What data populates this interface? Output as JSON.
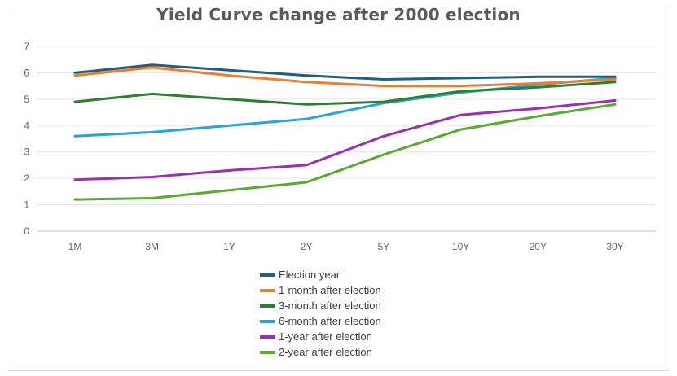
{
  "chart_data": {
    "type": "line",
    "title": "Yield Curve change after 2000 election",
    "xlabel": "",
    "ylabel": "",
    "categories": [
      "1M",
      "3M",
      "1Y",
      "2Y",
      "5Y",
      "10Y",
      "20Y",
      "30Y"
    ],
    "ylim": [
      0,
      7
    ],
    "yticks": [
      "0",
      "1",
      "2",
      "3",
      "4",
      "5",
      "6",
      "7"
    ],
    "grid": true,
    "legend_position": "bottom",
    "series": [
      {
        "name": "Election year",
        "color": "#1f5f80",
        "values": [
          6.0,
          6.3,
          6.1,
          5.9,
          5.75,
          5.8,
          5.85,
          5.85
        ]
      },
      {
        "name": "1-month after election",
        "color": "#ed7d31",
        "values": [
          5.9,
          6.2,
          5.9,
          5.65,
          5.5,
          5.5,
          5.6,
          5.75
        ]
      },
      {
        "name": "3-month after election",
        "color": "#2e7d32",
        "values": [
          4.9,
          5.2,
          5.0,
          4.8,
          4.9,
          5.3,
          5.45,
          5.65
        ]
      },
      {
        "name": "6-month after election",
        "color": "#29a3dc",
        "values": [
          3.6,
          3.75,
          4.0,
          4.25,
          4.85,
          5.25,
          5.55,
          5.8
        ]
      },
      {
        "name": "1-year after election",
        "color": "#9b2fae",
        "values": [
          1.95,
          2.05,
          2.3,
          2.5,
          3.6,
          4.4,
          4.65,
          4.95
        ]
      },
      {
        "name": "2-year after election",
        "color": "#5aaa32",
        "values": [
          1.2,
          1.25,
          1.55,
          1.85,
          2.9,
          3.85,
          4.35,
          4.8
        ]
      }
    ]
  }
}
